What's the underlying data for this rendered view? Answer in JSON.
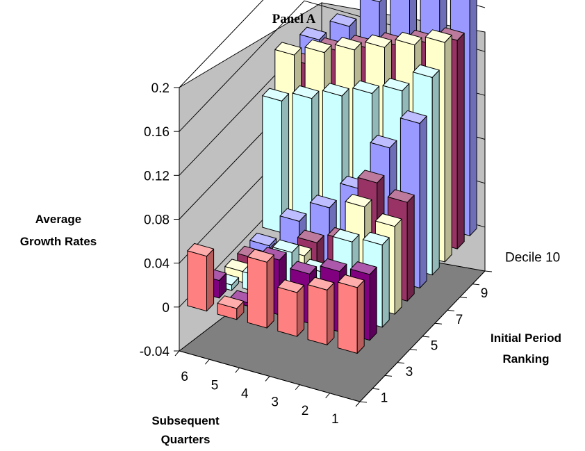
{
  "chart_data": {
    "type": "bar",
    "subtype": "3d-column",
    "title": "Panel A",
    "zlabel_lines": [
      "Average",
      "Growth Rates"
    ],
    "xlabel_lines": [
      "Subsequent",
      "Quarters"
    ],
    "ylabel_lines": [
      "Initial Period",
      "Ranking"
    ],
    "x_categories": [
      "1",
      "2",
      "3",
      "4",
      "5",
      "6"
    ],
    "x_tick_labels": [
      "6",
      "5",
      "4",
      "3",
      "2",
      "1"
    ],
    "depth_tick_labels": [
      "1",
      "3",
      "5",
      "7",
      "9",
      "Decile 10"
    ],
    "zlim": [
      -0.04,
      0.2
    ],
    "z_ticks": [
      "-0.04",
      "0",
      "0.04",
      "0.08",
      "0.12",
      "0.16",
      "0.2"
    ],
    "grid": true,
    "series": [
      {
        "name": "1",
        "color": "#ff8080",
        "values": [
          0.05,
          0.01,
          0.06,
          0.04,
          0.05,
          0.06
        ]
      },
      {
        "name": "2",
        "color": "#800080",
        "values": [
          0.016,
          0.003,
          0.05,
          0.045,
          0.055,
          0.06
        ]
      },
      {
        "name": "3",
        "color": "#ccffff",
        "values": [
          -0.005,
          0.015,
          0.045,
          0.035,
          0.07,
          0.075
        ]
      },
      {
        "name": "4",
        "color": "#ffffcc",
        "values": [
          -0.01,
          0.005,
          0.03,
          0.02,
          0.09,
          0.08
        ]
      },
      {
        "name": "5",
        "color": "#993366",
        "values": [
          -0.025,
          0.01,
          0.03,
          0.04,
          0.1,
          0.09
        ]
      },
      {
        "name": "6",
        "color": "#9999ff",
        "values": [
          -0.02,
          0.03,
          0.05,
          0.075,
          0.12,
          0.15
        ]
      },
      {
        "name": "7",
        "color": "#ccffff",
        "values": [
          0.12,
          0.13,
          0.14,
          0.15,
          0.16,
          0.18
        ]
      },
      {
        "name": "8",
        "color": "#ffffcc",
        "values": [
          0.15,
          0.16,
          0.17,
          0.18,
          0.19,
          0.2
        ]
      },
      {
        "name": "9",
        "color": "#993366",
        "values": [
          0.13,
          0.15,
          0.16,
          0.17,
          0.18,
          0.19
        ]
      },
      {
        "name": "10",
        "color": "#9999ff",
        "values": [
          0.14,
          0.16,
          0.19,
          0.21,
          0.22,
          0.23
        ]
      }
    ]
  }
}
